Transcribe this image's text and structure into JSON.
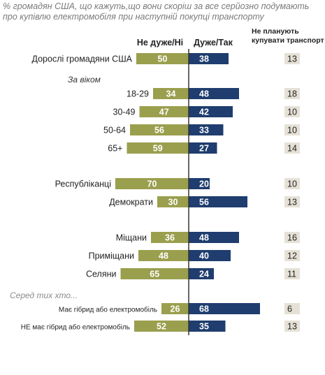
{
  "title": "% громадян США, що кажуть,що вони скоріш за все серйозно подумають про купівлю електромобіля при наступній покупці транспорту",
  "colors": {
    "no": "#9a9f4e",
    "yes": "#1f3d6e",
    "no_text": "#ffffff",
    "yes_text": "#ffffff",
    "np_box": "#e6e1d6",
    "axis": "#333333"
  },
  "chart_data": {
    "type": "bar",
    "series": [
      {
        "name": "Не дуже/Ні",
        "key": "no"
      },
      {
        "name": "Дуже/Так",
        "key": "yes"
      },
      {
        "name": "Не планують купувати транспорт",
        "key": "np"
      }
    ],
    "headers": {
      "no": "Не дуже/Ні",
      "yes": "Дуже/Так",
      "np_line1": "Не планують",
      "np_line2": "купувати транспорт"
    },
    "rows": [
      {
        "label": "Дорослі громадяни США",
        "no": 50,
        "yes": 38,
        "np": 13,
        "style": "normal"
      },
      {
        "label": "За віком",
        "style": "group"
      },
      {
        "label": "18-29",
        "no": 34,
        "yes": 48,
        "np": 18,
        "style": "normal"
      },
      {
        "label": "30-49",
        "no": 47,
        "yes": 42,
        "np": 10,
        "style": "normal"
      },
      {
        "label": "50-64",
        "no": 56,
        "yes": 33,
        "np": 10,
        "style": "normal"
      },
      {
        "label": "65+",
        "no": 59,
        "yes": 27,
        "np": 14,
        "style": "normal"
      },
      {
        "label": "Республіканці",
        "no": 70,
        "yes": 20,
        "np": 10,
        "style": "normal"
      },
      {
        "label": "Демократи",
        "no": 30,
        "yes": 56,
        "np": 13,
        "style": "normal"
      },
      {
        "label": "Міщани",
        "no": 36,
        "yes": 48,
        "np": 16,
        "style": "normal"
      },
      {
        "label": "Приміщани",
        "no": 48,
        "yes": 40,
        "np": 12,
        "style": "normal"
      },
      {
        "label": "Селяни",
        "no": 65,
        "yes": 24,
        "np": 11,
        "style": "normal"
      },
      {
        "label": "Серед тих хто...",
        "style": "group-gray"
      },
      {
        "label": "Має гібрид або електромобіль",
        "no": 26,
        "yes": 68,
        "np": 6,
        "style": "small"
      },
      {
        "label": "НЕ має гібрид або електромобіль",
        "no": 52,
        "yes": 35,
        "np": 13,
        "style": "small"
      }
    ]
  }
}
